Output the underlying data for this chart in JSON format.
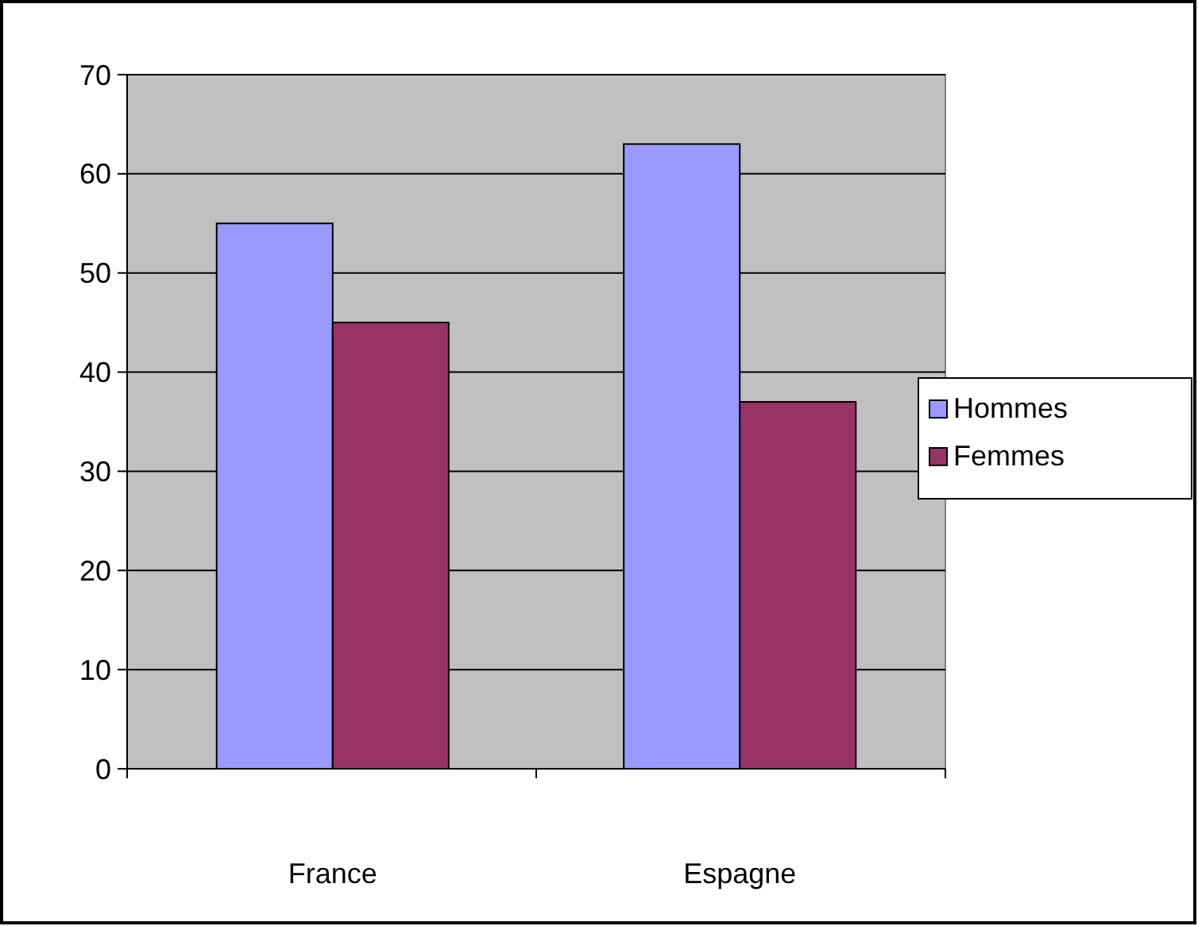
{
  "chart_data": {
    "type": "bar",
    "categories": [
      "France",
      "Espagne"
    ],
    "series": [
      {
        "name": "Hommes",
        "color": "#9999ff",
        "values": [
          55,
          63
        ]
      },
      {
        "name": "Femmes",
        "color": "#993366",
        "values": [
          45,
          37
        ]
      }
    ],
    "ylim": [
      0,
      70
    ],
    "yticks": [
      0,
      10,
      20,
      30,
      40,
      50,
      60,
      70
    ],
    "grid": "y",
    "legend": "right"
  }
}
